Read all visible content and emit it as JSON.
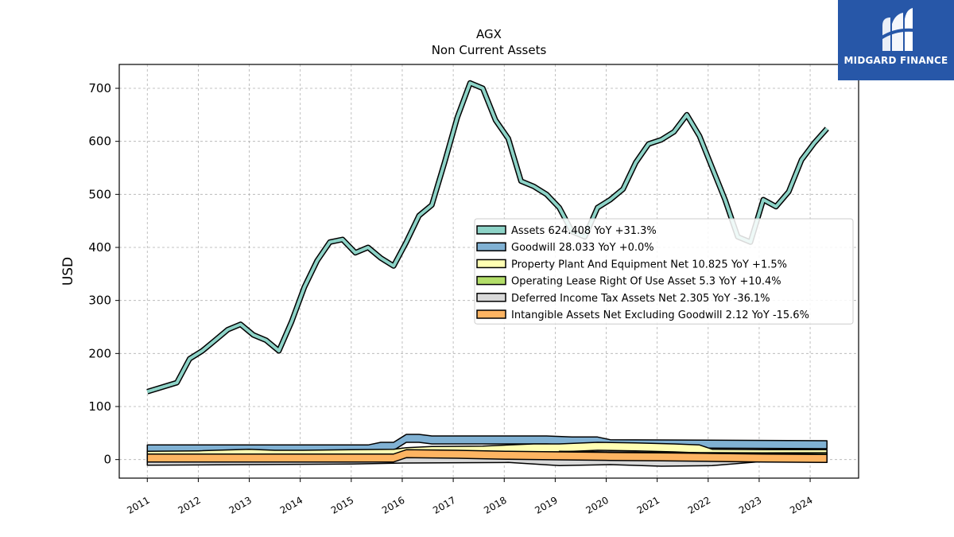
{
  "brand": {
    "name": "MIDGARD FINANCE",
    "color": "#2757a8"
  },
  "chart_data": {
    "type": "area",
    "title": "AGX",
    "subtitle": "Non Current  Assets",
    "xlabel": "",
    "ylabel": "USD",
    "ylim": [
      -35,
      745
    ],
    "xlim": [
      2010.45,
      2024.95
    ],
    "yticks": [
      0,
      100,
      200,
      300,
      400,
      500,
      600,
      700
    ],
    "xticks": [
      2011,
      2012,
      2013,
      2014,
      2015,
      2016,
      2017,
      2018,
      2019,
      2020,
      2021,
      2022,
      2023,
      2024
    ],
    "grid": true,
    "legend_position": "center-right",
    "series": [
      {
        "name": "Assets",
        "legend": "Assets  624.408 YoY +31.3%",
        "color": "#8dd3c7",
        "x": [
          2011.0,
          2011.58,
          2011.83,
          2012.08,
          2012.33,
          2012.58,
          2012.83,
          2013.08,
          2013.33,
          2013.58,
          2013.83,
          2014.08,
          2014.33,
          2014.58,
          2014.83,
          2015.08,
          2015.33,
          2015.58,
          2015.83,
          2016.08,
          2016.33,
          2016.58,
          2016.83,
          2017.08,
          2017.33,
          2017.58,
          2017.83,
          2018.08,
          2018.33,
          2018.58,
          2018.83,
          2019.08,
          2019.33,
          2019.58,
          2019.83,
          2020.08,
          2020.33,
          2020.58,
          2020.83,
          2021.08,
          2021.33,
          2021.58,
          2021.83,
          2022.08,
          2022.33,
          2022.58,
          2022.83,
          2023.08,
          2023.33,
          2023.58,
          2023.83,
          2024.08,
          2024.33
        ],
        "values": [
          128,
          145,
          190,
          205,
          225,
          245,
          255,
          235,
          225,
          205,
          260,
          325,
          375,
          410,
          415,
          390,
          400,
          380,
          365,
          410,
          460,
          480,
          560,
          645,
          710,
          700,
          640,
          605,
          525,
          515,
          500,
          475,
          430,
          420,
          475,
          490,
          510,
          560,
          595,
          603,
          618,
          650,
          610,
          550,
          490,
          420,
          410,
          490,
          477,
          505,
          565,
          597,
          624
        ]
      },
      {
        "name": "Goodwill",
        "legend": "Goodwill  28.033 YoY +0.0%",
        "color": "#80b1d3",
        "x": [
          2011.0,
          2015.33,
          2015.58,
          2015.83,
          2016.08,
          2016.33,
          2016.58,
          2018.08,
          2018.83,
          2019.33,
          2019.83,
          2020.08,
          2024.33
        ],
        "values": [
          20,
          20,
          25,
          25,
          40,
          40,
          37,
          37,
          37,
          35,
          35,
          30,
          28
        ]
      },
      {
        "name": "Property Plant And Equipment Net",
        "legend": "Property Plant And Equipment Net  10.825 YoY +1.5%",
        "color": "#ffffb3",
        "x": [
          2011.0,
          2012.0,
          2013.0,
          2013.5,
          2014.0,
          2015.0,
          2015.83,
          2016.08,
          2016.58,
          2017.58,
          2018.58,
          2019.08,
          2019.83,
          2020.58,
          2021.33,
          2021.83,
          2022.08,
          2023.08,
          2024.33
        ],
        "values": [
          8,
          9,
          12,
          10,
          10,
          11,
          12,
          15,
          17,
          18,
          22,
          22,
          25,
          24,
          22,
          20,
          12,
          11,
          11
        ]
      },
      {
        "name": "Operating Lease Right Of Use Asset",
        "legend": "Operating Lease Right Of Use Asset  5.3 YoY +10.4%",
        "color": "#b3de69",
        "x": [
          2019.08,
          2020.08,
          2021.08,
          2022.08,
          2023.08,
          2024.33
        ],
        "values": [
          8,
          7,
          6,
          5.5,
          5,
          5.3
        ]
      },
      {
        "name": "Deferred Income Tax Assets Net",
        "legend": "Deferred Income Tax Assets Net  2.305 YoY -36.1%",
        "color": "#d9d9d9",
        "x": [
          2011.0,
          2013.0,
          2015.0,
          2016.08,
          2018.08,
          2019.08,
          2020.08,
          2021.08,
          2022.08,
          2023.08,
          2024.33
        ],
        "values": [
          -3,
          -2,
          -1,
          1,
          2,
          -4,
          -2,
          -5,
          -4,
          4,
          2.3
        ]
      },
      {
        "name": "Intangible Assets Net Excluding Goodwill",
        "legend": "Intangible Assets Net Excluding Goodwill  2.12 YoY -15.6%",
        "color": "#fdb462",
        "x": [
          2011.0,
          2015.83,
          2016.08,
          2017.08,
          2018.08,
          2019.08,
          2020.08,
          2021.08,
          2022.08,
          2023.08,
          2024.33
        ],
        "values": [
          3,
          3,
          11,
          10,
          8,
          7,
          6,
          5,
          4,
          3,
          2.12
        ]
      }
    ]
  }
}
